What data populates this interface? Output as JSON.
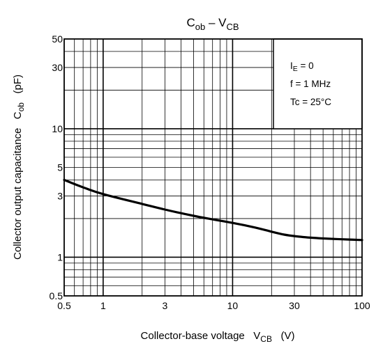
{
  "chart_data": {
    "type": "line",
    "title": {
      "main": "C",
      "sub1": "ob",
      "dash": " – V",
      "sub2": "CB"
    },
    "xlabel": {
      "pre": "Collector-base voltage   V",
      "sub": "CB",
      "post": "   (V)"
    },
    "ylabel": {
      "pre": "Collector output capacitance   C",
      "sub": "ob",
      "post": "   (pF)"
    },
    "x_scale": "log",
    "y_scale": "log",
    "xlim": [
      0.5,
      100
    ],
    "ylim": [
      0.5,
      50
    ],
    "grid": true,
    "x_ticks": [
      {
        "v": 0.5,
        "label": "0.5"
      },
      {
        "v": 1,
        "label": "1"
      },
      {
        "v": 3,
        "label": "3"
      },
      {
        "v": 10,
        "label": "10"
      },
      {
        "v": 30,
        "label": "30"
      },
      {
        "v": 100,
        "label": "100"
      }
    ],
    "y_ticks": [
      {
        "v": 0.5,
        "label": "0.5"
      },
      {
        "v": 1,
        "label": "1"
      },
      {
        "v": 3,
        "label": "3"
      },
      {
        "v": 5,
        "label": "5"
      },
      {
        "v": 10,
        "label": "10"
      },
      {
        "v": 30,
        "label": "30"
      },
      {
        "v": 50,
        "label": "50"
      }
    ],
    "series": [
      {
        "x": [
          0.5,
          0.7,
          1,
          2,
          3,
          5,
          7,
          10,
          15,
          20,
          25,
          30,
          40,
          50,
          70,
          100
        ],
        "y": [
          4.0,
          3.5,
          3.1,
          2.6,
          2.35,
          2.1,
          1.97,
          1.85,
          1.7,
          1.58,
          1.5,
          1.46,
          1.42,
          1.4,
          1.38,
          1.36
        ]
      }
    ],
    "annotations": [
      {
        "pre": "I",
        "sub": "E",
        "post": " = 0"
      },
      {
        "pre": "f = 1 MHz",
        "sub": "",
        "post": ""
      },
      {
        "pre": "Tc = 25°C",
        "sub": "",
        "post": ""
      }
    ]
  }
}
